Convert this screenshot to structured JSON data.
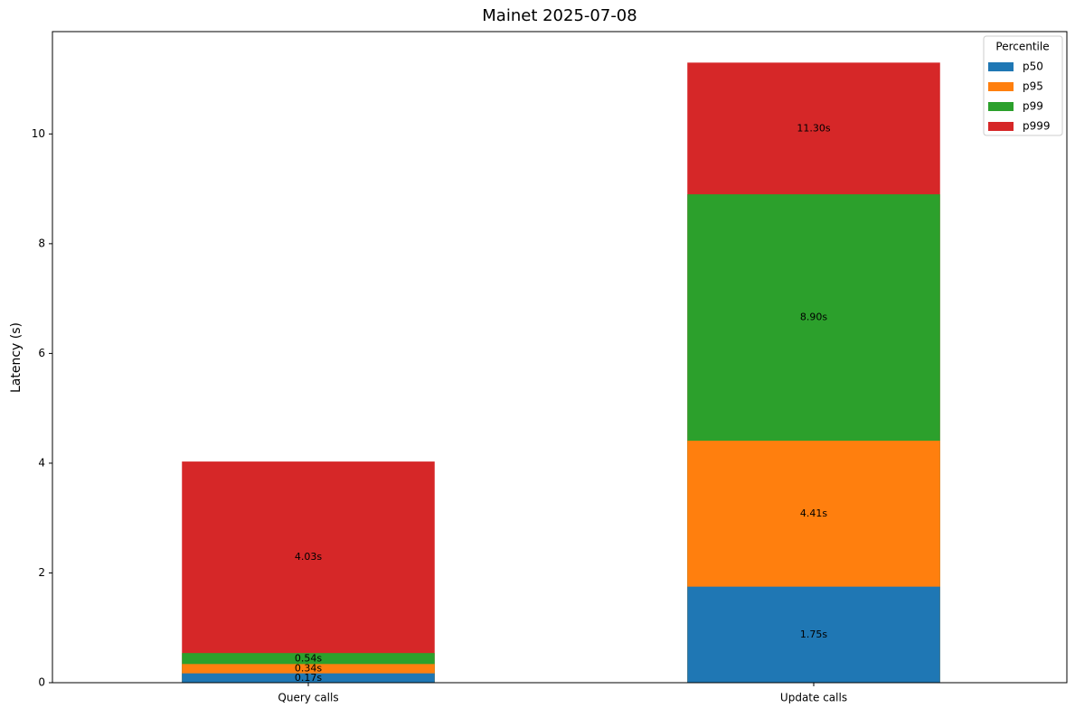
{
  "chart_data": {
    "type": "bar",
    "overlay": true,
    "title": "Mainet 2025-07-08",
    "y_label": "Latency (s)",
    "categories": [
      "Query calls",
      "Update calls"
    ],
    "series": [
      {
        "name": "p50",
        "color": "#1f77b4",
        "values": [
          0.17,
          1.75
        ],
        "value_labels": [
          "0.17s",
          "1.75s"
        ]
      },
      {
        "name": "p95",
        "color": "#ff7f0e",
        "values": [
          0.34,
          4.41
        ],
        "value_labels": [
          "0.34s",
          "4.41s"
        ]
      },
      {
        "name": "p99",
        "color": "#2ca02c",
        "values": [
          0.54,
          8.9
        ],
        "value_labels": [
          "0.54s",
          "8.90s"
        ]
      },
      {
        "name": "p999",
        "color": "#d62728",
        "values": [
          4.03,
          11.3
        ],
        "value_labels": [
          "4.03s",
          "11.30s"
        ]
      }
    ],
    "legend_title": "Percentile",
    "legend": "upper right",
    "ylim": [
      0,
      11.865
    ],
    "yticks": [
      0,
      2,
      4,
      6,
      8,
      10
    ]
  }
}
